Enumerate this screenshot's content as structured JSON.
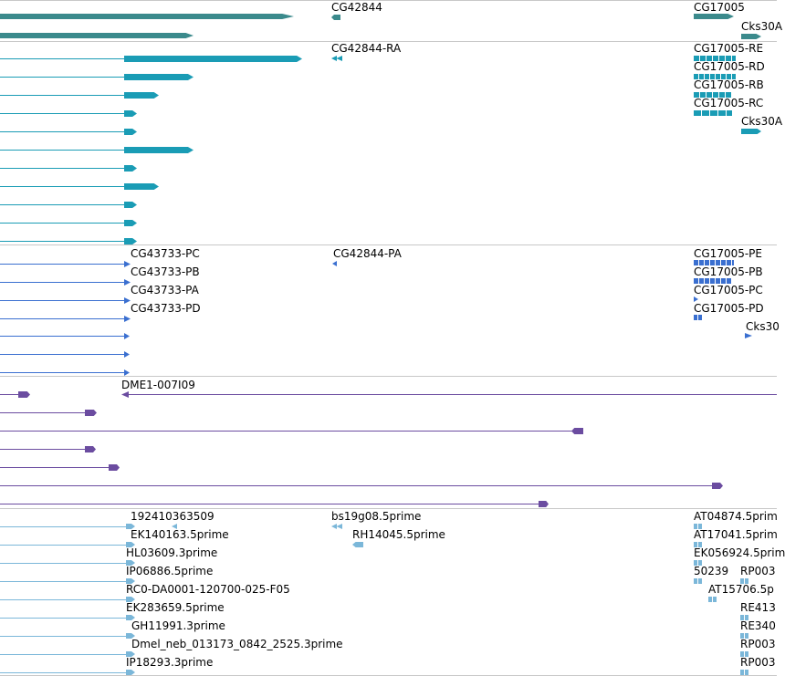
{
  "colors": {
    "gene": "#3b8a8c",
    "transcript": "#1a9cb5",
    "cds": "#3a6fd0",
    "clone": "#6b4ca0",
    "est": "#7bb7d9",
    "separator": "#c8c8c8"
  },
  "tracks": {
    "genes": {
      "labels": [
        "CG42844",
        "CG17005",
        "Cks30A"
      ]
    },
    "transcripts": {
      "labels": [
        "CG42844-RA",
        "CG17005-RE",
        "CG17005-RD",
        "CG17005-RB",
        "CG17005-RC",
        "Cks30A"
      ]
    },
    "cds": {
      "labels": [
        "CG43733-PC",
        "CG43733-PB",
        "CG43733-PA",
        "CG43733-PD",
        "CG42844-PA",
        "CG17005-PE",
        "CG17005-PB",
        "CG17005-PC",
        "CG17005-PD",
        "Cks30"
      ]
    },
    "clones": {
      "labels": [
        "DME1-007I09"
      ]
    },
    "ests": {
      "labels": [
        "192410363509",
        "EK140163.5prime",
        "HL03609.3prime",
        "IP06886.5prime",
        "RC0-DA0001-120700-025-F05",
        "EK283659.5prime",
        "GH11991.3prime",
        "Dmel_neb_013173_0842_2525.3prime",
        "IP18293.3prime",
        "bs19g08.5prime",
        "RH14045.5prime",
        "AT04874.5prim",
        "AT17041.5prim",
        "EK056924.5prim",
        "50239",
        "RP003",
        "AT15706.5p",
        "RE413",
        "RE340",
        "RP003",
        "RP003"
      ]
    }
  }
}
